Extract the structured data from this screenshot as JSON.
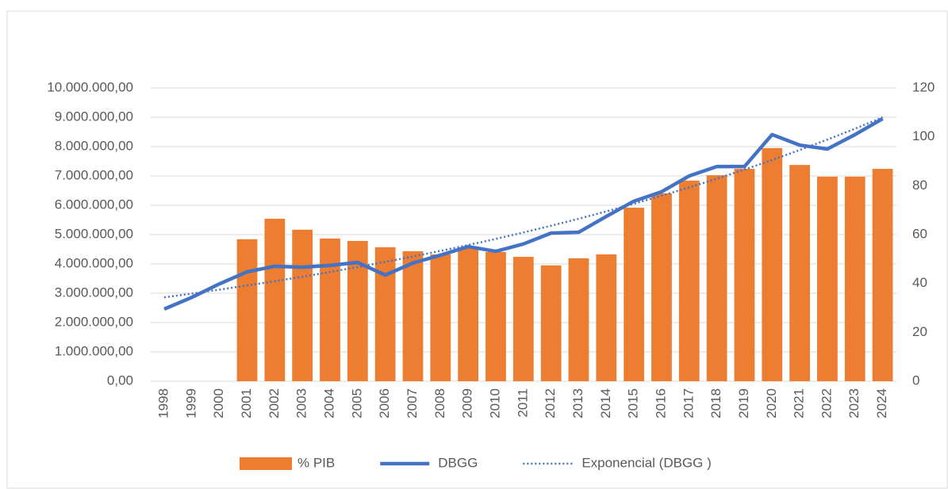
{
  "chart_data": {
    "type": "bar_line",
    "categories": [
      "1998",
      "1999",
      "2000",
      "2001",
      "2002",
      "2003",
      "2004",
      "2005",
      "2006",
      "2007",
      "2008",
      "2009",
      "2010",
      "2011",
      "2012",
      "2013",
      "2014",
      "2015",
      "2016",
      "2017",
      "2018",
      "2019",
      "2020",
      "2021",
      "2022",
      "2023",
      "2024"
    ],
    "series": [
      {
        "name": "% PIB",
        "type": "bar",
        "color": "#ed7d31",
        "axis": "y2",
        "values": [
          null,
          null,
          null,
          58.1,
          66.5,
          62.0,
          58.4,
          57.4,
          54.8,
          53.2,
          51.9,
          54.8,
          52.9,
          50.9,
          47.4,
          50.3,
          51.9,
          71.0,
          76.9,
          82.1,
          84.3,
          86.9,
          95.4,
          88.5,
          83.7,
          83.7,
          86.9
        ]
      },
      {
        "name": "DBGG",
        "type": "line",
        "color": "#4472c4",
        "axis": "y",
        "values": [
          2460000,
          2860000,
          3320000,
          3730000,
          3920000,
          3890000,
          3950000,
          4050000,
          3620000,
          4030000,
          4300000,
          4590000,
          4430000,
          4680000,
          5050000,
          5080000,
          5620000,
          6140000,
          6460000,
          7000000,
          7320000,
          7320000,
          8410000,
          8050000,
          7920000,
          8410000,
          8950000
        ]
      }
    ],
    "trendline": {
      "name": "Exponencial (DBGG )",
      "kind": "exponential",
      "color": "#4472c4"
    },
    "ylim": [
      0,
      10000000
    ],
    "yticks": [
      {
        "value": 0,
        "label": "0,00"
      },
      {
        "value": 1000000,
        "label": "1.000.000,00"
      },
      {
        "value": 2000000,
        "label": "2.000.000,00"
      },
      {
        "value": 3000000,
        "label": "3.000.000,00"
      },
      {
        "value": 4000000,
        "label": "4.000.000,00"
      },
      {
        "value": 5000000,
        "label": "5.000.000,00"
      },
      {
        "value": 6000000,
        "label": "6.000.000,00"
      },
      {
        "value": 7000000,
        "label": "7.000.000,00"
      },
      {
        "value": 8000000,
        "label": "8.000.000,00"
      },
      {
        "value": 9000000,
        "label": "9.000.000,00"
      },
      {
        "value": 10000000,
        "label": "10.000.000,00"
      }
    ],
    "y2lim": [
      0,
      120
    ],
    "y2ticks": [
      0,
      20,
      40,
      60,
      80,
      100,
      120
    ],
    "grid": true,
    "legend": "bottom"
  }
}
